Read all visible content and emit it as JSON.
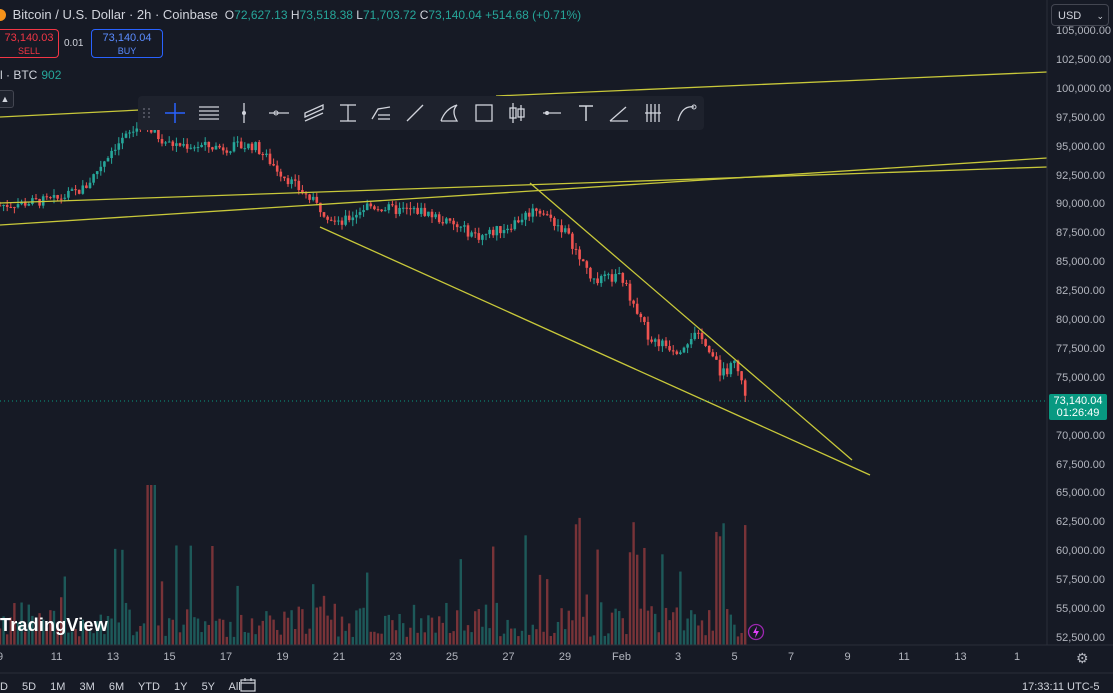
{
  "header": {
    "symbol_title": "Bitcoin / U.S. Dollar · 2h · Coinbase",
    "ohlc": [
      {
        "k": "O",
        "v": "72,627.13"
      },
      {
        "k": "H",
        "v": "73,518.38"
      },
      {
        "k": "L",
        "v": "71,703.72"
      },
      {
        "k": "C",
        "v": "73,140.04 +514.68 (+0.71%)"
      }
    ]
  },
  "trade": {
    "sell_price": "73,140.03",
    "sell_label": "SELL",
    "spread": "0.01",
    "buy_price": "73,140.04",
    "buy_label": "BUY"
  },
  "volume_legend": {
    "label": "l · BTC",
    "value": "902"
  },
  "currency": "USD",
  "price_axis": {
    "labels": [
      "105,000.00",
      "102,500.00",
      "100,000.00",
      "97,500.00",
      "95,000.00",
      "92,500.00",
      "90,000.00",
      "87,500.00",
      "85,000.00",
      "82,500.00",
      "80,000.00",
      "77,500.00",
      "75,000.00",
      "72,500.00",
      "70,000.00",
      "67,500.00",
      "65,000.00",
      "62,500.00",
      "60,000.00",
      "57,500.00",
      "55,000.00",
      "52,500.00"
    ],
    "values": [
      105000,
      102500,
      100000,
      97500,
      95000,
      92500,
      90000,
      87500,
      85000,
      82500,
      80000,
      77500,
      75000,
      72500,
      70000,
      67500,
      65000,
      62500,
      60000,
      57500,
      55000,
      52500
    ],
    "last_price": "73,140.04",
    "countdown": "01:26:49"
  },
  "time_axis": {
    "labels": [
      "9",
      "11",
      "13",
      "15",
      "17",
      "19",
      "21",
      "23",
      "25",
      "27",
      "29",
      "Feb",
      "3",
      "5",
      "7",
      "9",
      "11",
      "13",
      "1"
    ]
  },
  "toolbar_icons": [
    "drag-handle-icon",
    "crosshair-icon",
    "horizontal-lines-icon",
    "vertical-line-icon",
    "horizontal-ray-icon",
    "parallel-channel-icon",
    "fib-retracement-icon",
    "pitchfork-icon",
    "trend-line-icon",
    "path-icon",
    "rectangle-icon",
    "candle-icon",
    "horizontal-line-icon",
    "text-icon",
    "angle-icon",
    "bars-pattern-icon",
    "curve-icon"
  ],
  "ranges": [
    "D",
    "5D",
    "1M",
    "3M",
    "6M",
    "YTD",
    "1Y",
    "5Y",
    "All"
  ],
  "clock": "17:33:11 UTC-5",
  "brand": "TradingView",
  "colors": {
    "up": "#26a69a",
    "down": "#ef5350",
    "trendline": "#c8c83a",
    "background": "#161a25"
  },
  "chart_data": {
    "type": "candlestick",
    "symbol": "BTC/USD",
    "interval": "2h",
    "ylim": [
      52500,
      105000
    ],
    "close_path": [
      {
        "x": "Jan 9",
        "y": 90000
      },
      {
        "x": "Jan 11",
        "y": 90500
      },
      {
        "x": "Jan 12",
        "y": 91500
      },
      {
        "x": "Jan 13",
        "y": 95000
      },
      {
        "x": "Jan 14",
        "y": 97000
      },
      {
        "x": "Jan 15",
        "y": 95300
      },
      {
        "x": "Jan 17",
        "y": 95000
      },
      {
        "x": "Jan 18",
        "y": 95200
      },
      {
        "x": "Jan 19",
        "y": 92700
      },
      {
        "x": "Jan 20",
        "y": 90500
      },
      {
        "x": "Jan 21",
        "y": 88300
      },
      {
        "x": "Jan 22",
        "y": 90000
      },
      {
        "x": "Jan 23",
        "y": 89600
      },
      {
        "x": "Jan 24",
        "y": 89500
      },
      {
        "x": "Jan 25",
        "y": 88300
      },
      {
        "x": "Jan 26",
        "y": 87300
      },
      {
        "x": "Jan 27",
        "y": 88200
      },
      {
        "x": "Jan 28",
        "y": 89800
      },
      {
        "x": "Jan 29",
        "y": 87800
      },
      {
        "x": "Jan 30",
        "y": 83500
      },
      {
        "x": "Jan 31",
        "y": 83800
      },
      {
        "x": "Feb 1",
        "y": 78500
      },
      {
        "x": "Feb 2",
        "y": 77500
      },
      {
        "x": "Feb 2.5",
        "y": 78800
      },
      {
        "x": "Feb 3",
        "y": 78200
      },
      {
        "x": "Feb 3.5",
        "y": 75500
      },
      {
        "x": "Feb 4",
        "y": 76200
      },
      {
        "x": "Feb 4.5",
        "y": 73140
      }
    ],
    "last": {
      "open": 72627.13,
      "high": 73518.38,
      "low": 71703.72,
      "close": 73140.04,
      "change": 514.68,
      "change_pct": 0.71
    },
    "grid": false,
    "legend": "top-left"
  }
}
